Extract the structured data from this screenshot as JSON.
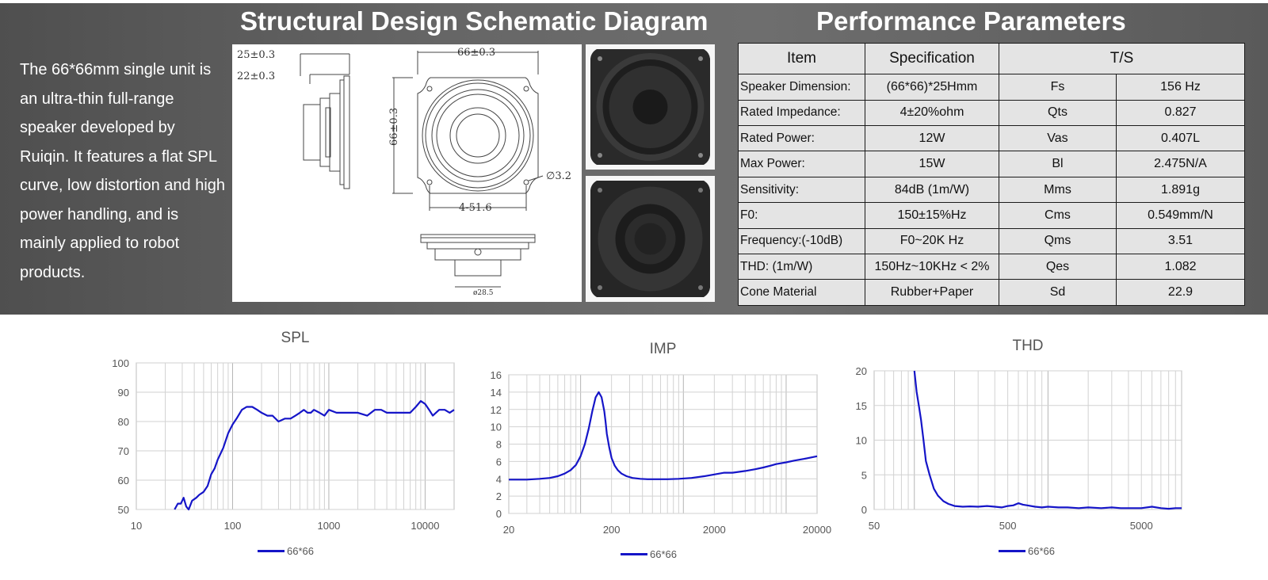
{
  "intro_text": "The 66*66mm single unit is an ultra-thin full-range speaker developed by Ruiqin. It features a flat SPL curve, low distortion and high power handling, and is mainly applied to robot products.",
  "schematic_title": "Structural Design Schematic Diagram",
  "params_title": "Performance Parameters",
  "schematic": {
    "dim_25": "25±0.3",
    "dim_22": "22±0.3",
    "dim_66_w": "66±0.3",
    "dim_66_h": "66±0.3",
    "dim_hole": "∅3.2",
    "dim_pitch": "4-51.6",
    "dim_magnet": "ø28.5"
  },
  "table": {
    "headers": [
      "Item",
      "Specification",
      "T/S"
    ],
    "rows": [
      [
        "Speaker Dimension:",
        "(66*66)*25Hmm",
        "Fs",
        "156 Hz"
      ],
      [
        "Rated Impedance:",
        "4±20%ohm",
        "Qts",
        "0.827"
      ],
      [
        "Rated Power:",
        "12W",
        "Vas",
        "0.407L"
      ],
      [
        "Max Power:",
        "15W",
        "Bl",
        "2.475N/A"
      ],
      [
        "Sensitivity:",
        "84dB (1m/W)",
        "Mms",
        "1.891g"
      ],
      [
        "F0:",
        "150±15%Hz",
        "Cms",
        "0.549mm/N"
      ],
      [
        "Frequency:(-10dB)",
        "F0~20K Hz",
        "Qms",
        "3.51"
      ],
      [
        "THD: (1m/W)",
        "150Hz~10KHz < 2%",
        "Qes",
        "1.082"
      ],
      [
        "Cone  Material",
        "Rubber+Paper",
        "Sd",
        "22.9"
      ]
    ]
  },
  "colors": {
    "curve": "#1515c8",
    "banner": "#5e5e5e",
    "table_bg": "#e4e4e4"
  },
  "chart_data": [
    {
      "type": "line",
      "title": "SPL",
      "xscale": "log",
      "xlim": [
        10,
        20000
      ],
      "ylim": [
        50,
        100
      ],
      "xticks": [
        10,
        100,
        1000,
        10000
      ],
      "xtick_labels": [
        "10",
        "100",
        "1000",
        "10000"
      ],
      "yticks": [
        50,
        60,
        70,
        80,
        90,
        100
      ],
      "grid": true,
      "legend_position": "bottom",
      "series": [
        {
          "name": "66*66",
          "x": [
            25,
            27,
            29,
            31,
            33,
            35,
            38,
            42,
            45,
            50,
            55,
            60,
            65,
            70,
            80,
            90,
            100,
            110,
            125,
            140,
            160,
            180,
            200,
            230,
            260,
            300,
            350,
            400,
            450,
            500,
            550,
            600,
            650,
            700,
            800,
            900,
            1000,
            1200,
            1400,
            1700,
            2000,
            2500,
            3000,
            3500,
            4000,
            5000,
            6000,
            7000,
            8000,
            9000,
            10000,
            11000,
            12000,
            14000,
            16000,
            18000,
            20000
          ],
          "y": [
            50,
            52,
            52,
            54,
            51,
            49,
            53,
            54,
            55,
            56,
            58,
            62,
            64,
            67,
            71,
            76,
            79,
            81,
            84,
            85,
            85,
            84,
            83,
            82,
            82,
            80,
            81,
            81,
            82,
            83,
            84,
            83,
            83,
            84,
            83,
            82,
            84,
            83,
            83,
            83,
            83,
            82,
            84,
            84,
            83,
            83,
            83,
            83,
            85,
            87,
            86,
            84,
            82,
            84,
            84,
            83,
            84
          ]
        }
      ]
    },
    {
      "type": "line",
      "title": "IMP",
      "xscale": "log",
      "xlim": [
        20,
        20000
      ],
      "ylim": [
        0,
        16
      ],
      "xticks": [
        20,
        200,
        2000,
        20000
      ],
      "xtick_labels": [
        "20",
        "200",
        "2000",
        "20000"
      ],
      "yticks": [
        0,
        2,
        4,
        6,
        8,
        10,
        12,
        14,
        16
      ],
      "grid": true,
      "legend_position": "bottom",
      "series": [
        {
          "name": "66*66",
          "x": [
            20,
            30,
            40,
            50,
            60,
            70,
            80,
            90,
            100,
            110,
            120,
            130,
            140,
            150,
            160,
            170,
            175,
            180,
            190,
            200,
            215,
            230,
            250,
            280,
            320,
            380,
            450,
            550,
            700,
            900,
            1200,
            1600,
            2000,
            2500,
            3000,
            4000,
            5000,
            6000,
            7000,
            8000,
            10000,
            12000,
            15000,
            20000
          ],
          "y": [
            3.9,
            3.9,
            4.0,
            4.1,
            4.3,
            4.6,
            5.0,
            5.6,
            6.6,
            8.0,
            9.8,
            11.8,
            13.4,
            14.0,
            13.4,
            11.8,
            10.6,
            9.2,
            7.6,
            6.4,
            5.5,
            5.0,
            4.6,
            4.3,
            4.1,
            4.0,
            3.95,
            3.95,
            3.95,
            4.0,
            4.1,
            4.3,
            4.5,
            4.7,
            4.7,
            4.9,
            5.1,
            5.3,
            5.5,
            5.7,
            5.9,
            6.1,
            6.3,
            6.6
          ]
        }
      ]
    },
    {
      "type": "line",
      "title": "THD",
      "xscale": "log",
      "xlim": [
        50,
        10000
      ],
      "ylim": [
        0,
        20
      ],
      "xticks": [
        50,
        500,
        5000
      ],
      "xtick_labels": [
        "50",
        "500",
        "5000"
      ],
      "yticks": [
        0,
        5,
        10,
        15,
        20
      ],
      "grid": true,
      "legend_position": "bottom",
      "series": [
        {
          "name": "66*66",
          "x": [
            100,
            104,
            108,
            112,
            117,
            122,
            130,
            140,
            150,
            165,
            180,
            200,
            230,
            260,
            300,
            350,
            400,
            450,
            500,
            550,
            600,
            650,
            700,
            800,
            900,
            1000,
            1200,
            1400,
            1700,
            2000,
            2500,
            3000,
            3500,
            4000,
            5000,
            6000,
            7000,
            8000,
            9000,
            10000
          ],
          "y": [
            20,
            17,
            15,
            13,
            10,
            7,
            5,
            3,
            2,
            1.2,
            0.8,
            0.5,
            0.4,
            0.45,
            0.4,
            0.5,
            0.4,
            0.3,
            0.5,
            0.6,
            0.9,
            0.7,
            0.6,
            0.4,
            0.3,
            0.4,
            0.3,
            0.3,
            0.2,
            0.3,
            0.2,
            0.3,
            0.2,
            0.2,
            0.2,
            0.4,
            0.2,
            0.1,
            0.2,
            0.2
          ]
        }
      ]
    }
  ]
}
